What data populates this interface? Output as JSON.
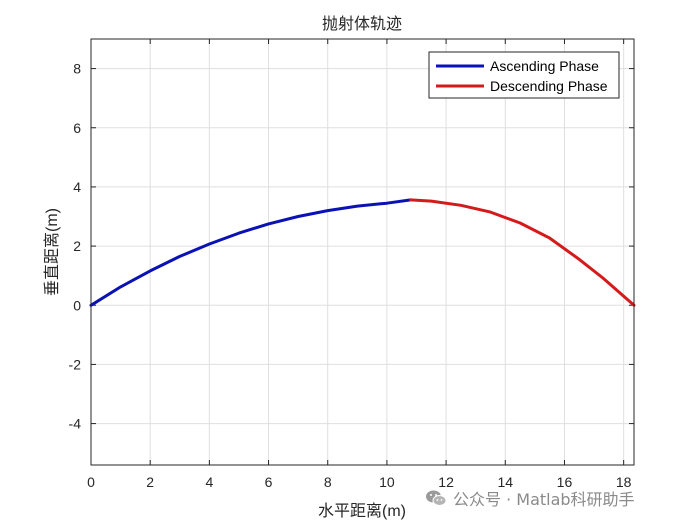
{
  "chart_data": {
    "type": "line",
    "title": "抛射体轨迹",
    "xlabel": "水平距离(m)",
    "ylabel": "垂直距离(m)",
    "xlim": [
      0,
      18.35
    ],
    "ylim": [
      -5.4,
      9.0
    ],
    "xticks": [
      0,
      2,
      4,
      6,
      8,
      10,
      12,
      14,
      16,
      18
    ],
    "yticks": [
      -4,
      -2,
      0,
      2,
      4,
      6,
      8
    ],
    "grid": true,
    "legend_position": "top-right",
    "series": [
      {
        "name": "Ascending Phase",
        "color": "#0a12b4",
        "x": [
          0,
          1,
          2,
          3,
          4,
          5,
          6,
          7,
          8,
          9,
          10,
          10.8
        ],
        "y": [
          0,
          0.62,
          1.16,
          1.65,
          2.07,
          2.44,
          2.75,
          3.0,
          3.2,
          3.35,
          3.45,
          3.56
        ]
      },
      {
        "name": "Descending Phase",
        "color": "#d41a1a",
        "x": [
          10.8,
          11.5,
          12.5,
          13.5,
          14.5,
          15.5,
          16.5,
          17.3,
          18.35
        ],
        "y": [
          3.56,
          3.52,
          3.38,
          3.15,
          2.78,
          2.27,
          1.55,
          0.92,
          0
        ]
      }
    ]
  },
  "watermark": {
    "icon": "wechat-icon",
    "text": "公众号 · Matlab科研助手"
  }
}
